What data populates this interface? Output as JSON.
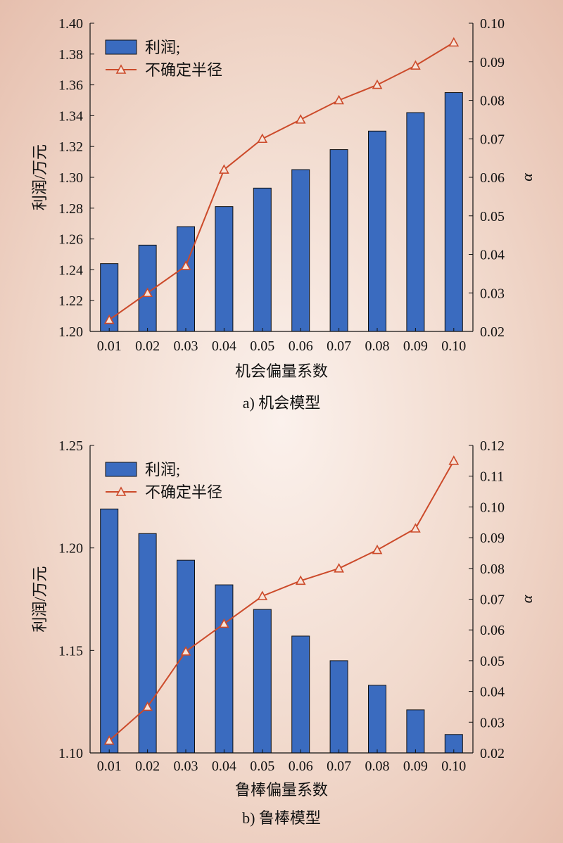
{
  "chart_data": [
    {
      "type": "bar",
      "caption": "a) 机会模型",
      "categories": [
        "0.01",
        "0.02",
        "0.03",
        "0.04",
        "0.05",
        "0.06",
        "0.07",
        "0.08",
        "0.09",
        "0.10"
      ],
      "xlabel": "机会偏量系数",
      "ylabel": "利润/万元",
      "y2label": "α",
      "ylim": [
        1.2,
        1.4
      ],
      "yticks": [
        "1.20",
        "1.22",
        "1.24",
        "1.26",
        "1.28",
        "1.30",
        "1.32",
        "1.34",
        "1.36",
        "1.38",
        "1.40"
      ],
      "y2lim": [
        0.02,
        0.1
      ],
      "y2ticks": [
        "0.02",
        "0.03",
        "0.04",
        "0.05",
        "0.06",
        "0.07",
        "0.08",
        "0.09",
        "0.10"
      ],
      "legend": [
        "利润;",
        "不确定半径"
      ],
      "legend_position": "top-left",
      "series": [
        {
          "kind": "bar",
          "axis": "left",
          "color": "#3a6bbf",
          "values": [
            1.244,
            1.256,
            1.268,
            1.281,
            1.293,
            1.305,
            1.318,
            1.33,
            1.342,
            1.355
          ]
        },
        {
          "kind": "line",
          "axis": "right",
          "color": "#cc4a2a",
          "marker": "triangle",
          "values": [
            0.023,
            0.03,
            0.037,
            0.062,
            0.07,
            0.075,
            0.08,
            0.084,
            0.089,
            0.095
          ]
        }
      ]
    },
    {
      "type": "bar",
      "caption": "b) 鲁棒模型",
      "categories": [
        "0.01",
        "0.02",
        "0.03",
        "0.04",
        "0.05",
        "0.06",
        "0.07",
        "0.08",
        "0.09",
        "0.10"
      ],
      "xlabel": "鲁棒偏量系数",
      "ylabel": "利润/万元",
      "y2label": "α",
      "ylim": [
        1.1,
        1.25
      ],
      "yticks": [
        "1.10",
        "1.15",
        "1.20",
        "1.25"
      ],
      "y2lim": [
        0.02,
        0.12
      ],
      "y2ticks": [
        "0.02",
        "0.03",
        "0.04",
        "0.05",
        "0.06",
        "0.07",
        "0.08",
        "0.09",
        "0.10",
        "0.11",
        "0.12"
      ],
      "legend": [
        "利润;",
        "不确定半径"
      ],
      "legend_position": "top-left",
      "series": [
        {
          "kind": "bar",
          "axis": "left",
          "color": "#3a6bbf",
          "values": [
            1.219,
            1.207,
            1.194,
            1.182,
            1.17,
            1.157,
            1.145,
            1.133,
            1.121,
            1.109
          ]
        },
        {
          "kind": "line",
          "axis": "right",
          "color": "#cc4a2a",
          "marker": "triangle",
          "values": [
            0.024,
            0.035,
            0.053,
            0.062,
            0.071,
            0.076,
            0.08,
            0.086,
            0.093,
            0.115
          ]
        }
      ]
    }
  ]
}
